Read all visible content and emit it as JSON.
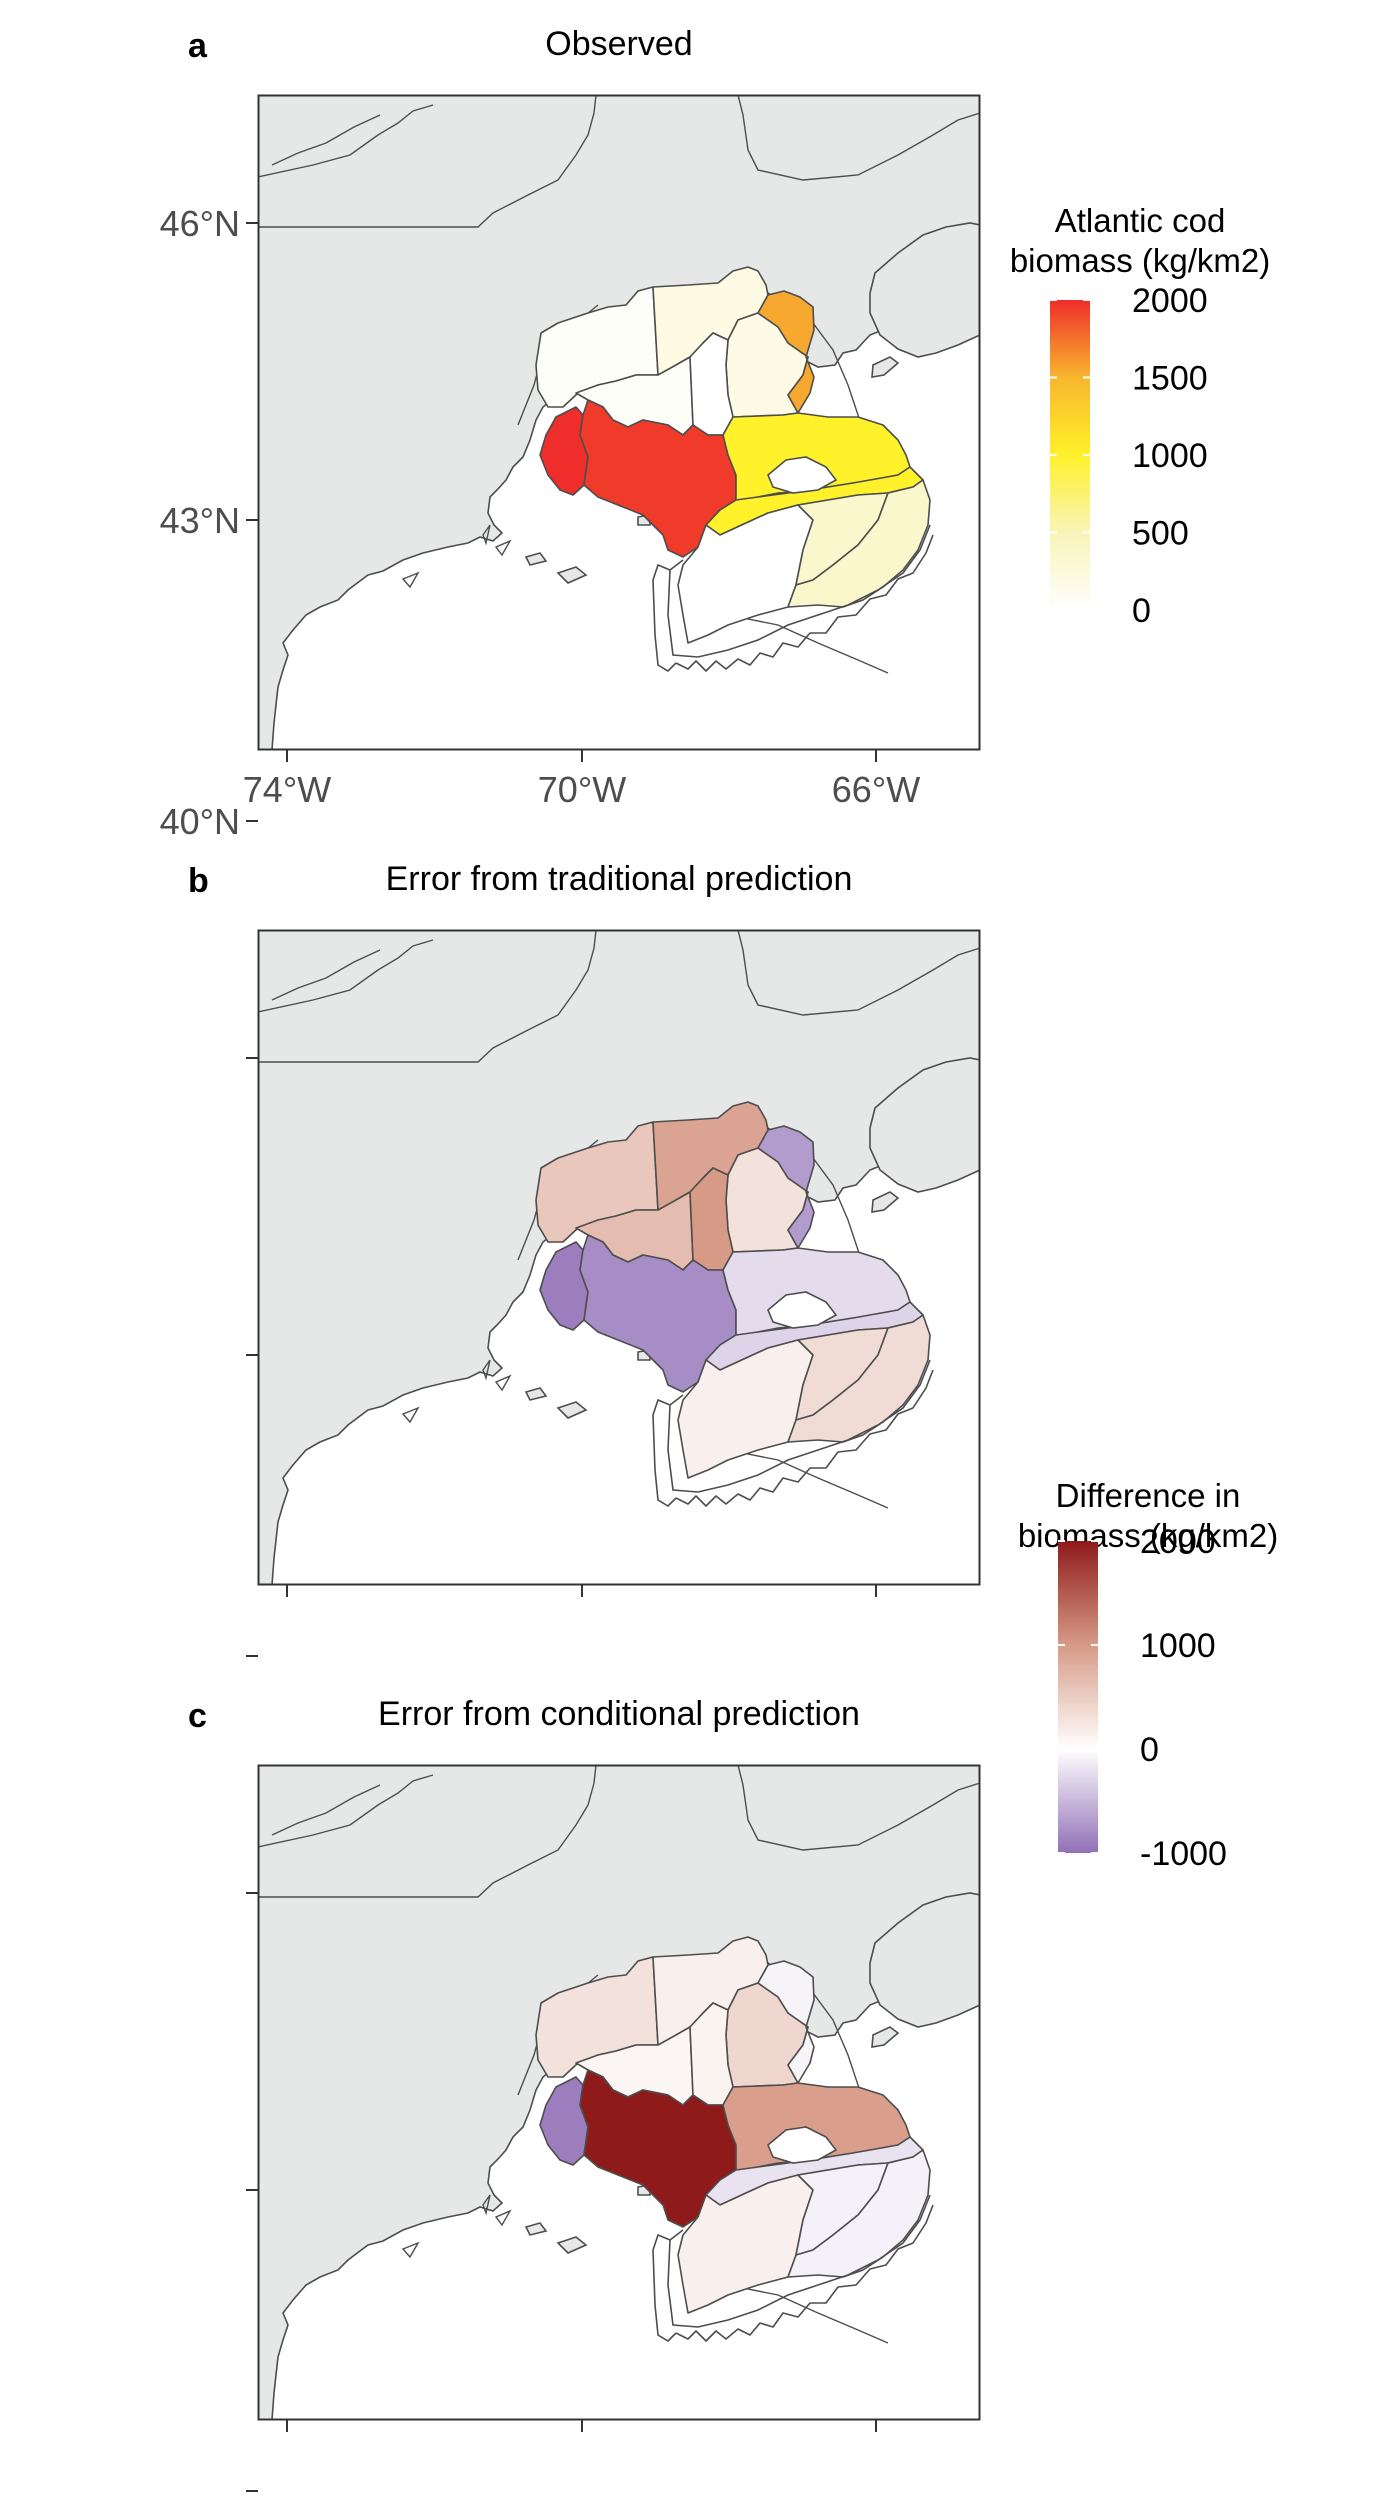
{
  "panels": [
    {
      "letter": "a",
      "title": "Observed",
      "palette": "observed",
      "polys": {
        "wmaine": 50,
        "cmaine": 200,
        "emaine": 180,
        "bay": 1550,
        "wgulf": 50,
        "cgulf": 0,
        "mass": 2000,
        "glouc": 1950,
        "nechan": 1000,
        "sechan": 1000,
        "sgeo": 0,
        "ngeo": 350,
        "egeo": 350
      }
    },
    {
      "letter": "b",
      "title": "Error from traditional prediction",
      "palette": "diverging",
      "polys": {
        "wmaine": 550,
        "cmaine": 900,
        "emaine": 300,
        "bay": -700,
        "wgulf": 650,
        "cgulf": 1000,
        "mass": -900,
        "glouc": -800,
        "nechan": -250,
        "sechan": -300,
        "sgeo": 150,
        "ngeo": 350,
        "egeo": 350
      }
    },
    {
      "letter": "c",
      "title": "Error from conditional prediction",
      "palette": "diverging",
      "polys": {
        "wmaine": 300,
        "cmaine": 150,
        "emaine": 400,
        "bay": -80,
        "wgulf": 100,
        "cgulf": 120,
        "mass": -900,
        "glouc": 2000,
        "nechan": 950,
        "sechan": -200,
        "sgeo": 150,
        "ngeo": -100,
        "egeo": -100
      }
    }
  ],
  "axes": {
    "lat_ticks": [
      {
        "value": 46,
        "label": "46°N"
      },
      {
        "value": 43,
        "label": "43°N"
      },
      {
        "value": 40,
        "label": "40°N"
      }
    ],
    "lon_ticks": [
      {
        "value": -74,
        "label": "74°W"
      },
      {
        "value": -70,
        "label": "70°W"
      },
      {
        "value": -66,
        "label": "66°W"
      }
    ],
    "lon_range": [
      -74.4,
      -64.6
    ],
    "lat_range": [
      39.8,
      46.25
    ]
  },
  "legends": {
    "observed": {
      "title_line1": "Atlantic cod",
      "title_line2": "biomass (kg/km2)",
      "ticks": [
        {
          "value": 2000,
          "label": "2000"
        },
        {
          "value": 1500,
          "label": "1500"
        },
        {
          "value": 1000,
          "label": "1000"
        },
        {
          "value": 500,
          "label": "500"
        },
        {
          "value": 0,
          "label": "0"
        }
      ],
      "range": [
        0,
        2000
      ],
      "colors": [
        "#ffffff",
        "#f9f4b8",
        "#fff12a",
        "#f8b62f",
        "#ef2d2a"
      ]
    },
    "diverging": {
      "title_line1": "Difference in",
      "title_line2": "biomass (kg/km2)",
      "ticks": [
        {
          "value": 2000,
          "label": "2000"
        },
        {
          "value": 1000,
          "label": "1000"
        },
        {
          "value": 0,
          "label": "0"
        },
        {
          "value": -1000,
          "label": "-1000"
        }
      ],
      "range": [
        -1000,
        2000
      ],
      "colors": [
        "#9170b8",
        "#ffffff",
        "#d79a86",
        "#8e1a1a"
      ]
    }
  },
  "colors": {
    "land": "#e6e7e7",
    "outline": "#4d4d4d",
    "water": "#ffffff"
  }
}
